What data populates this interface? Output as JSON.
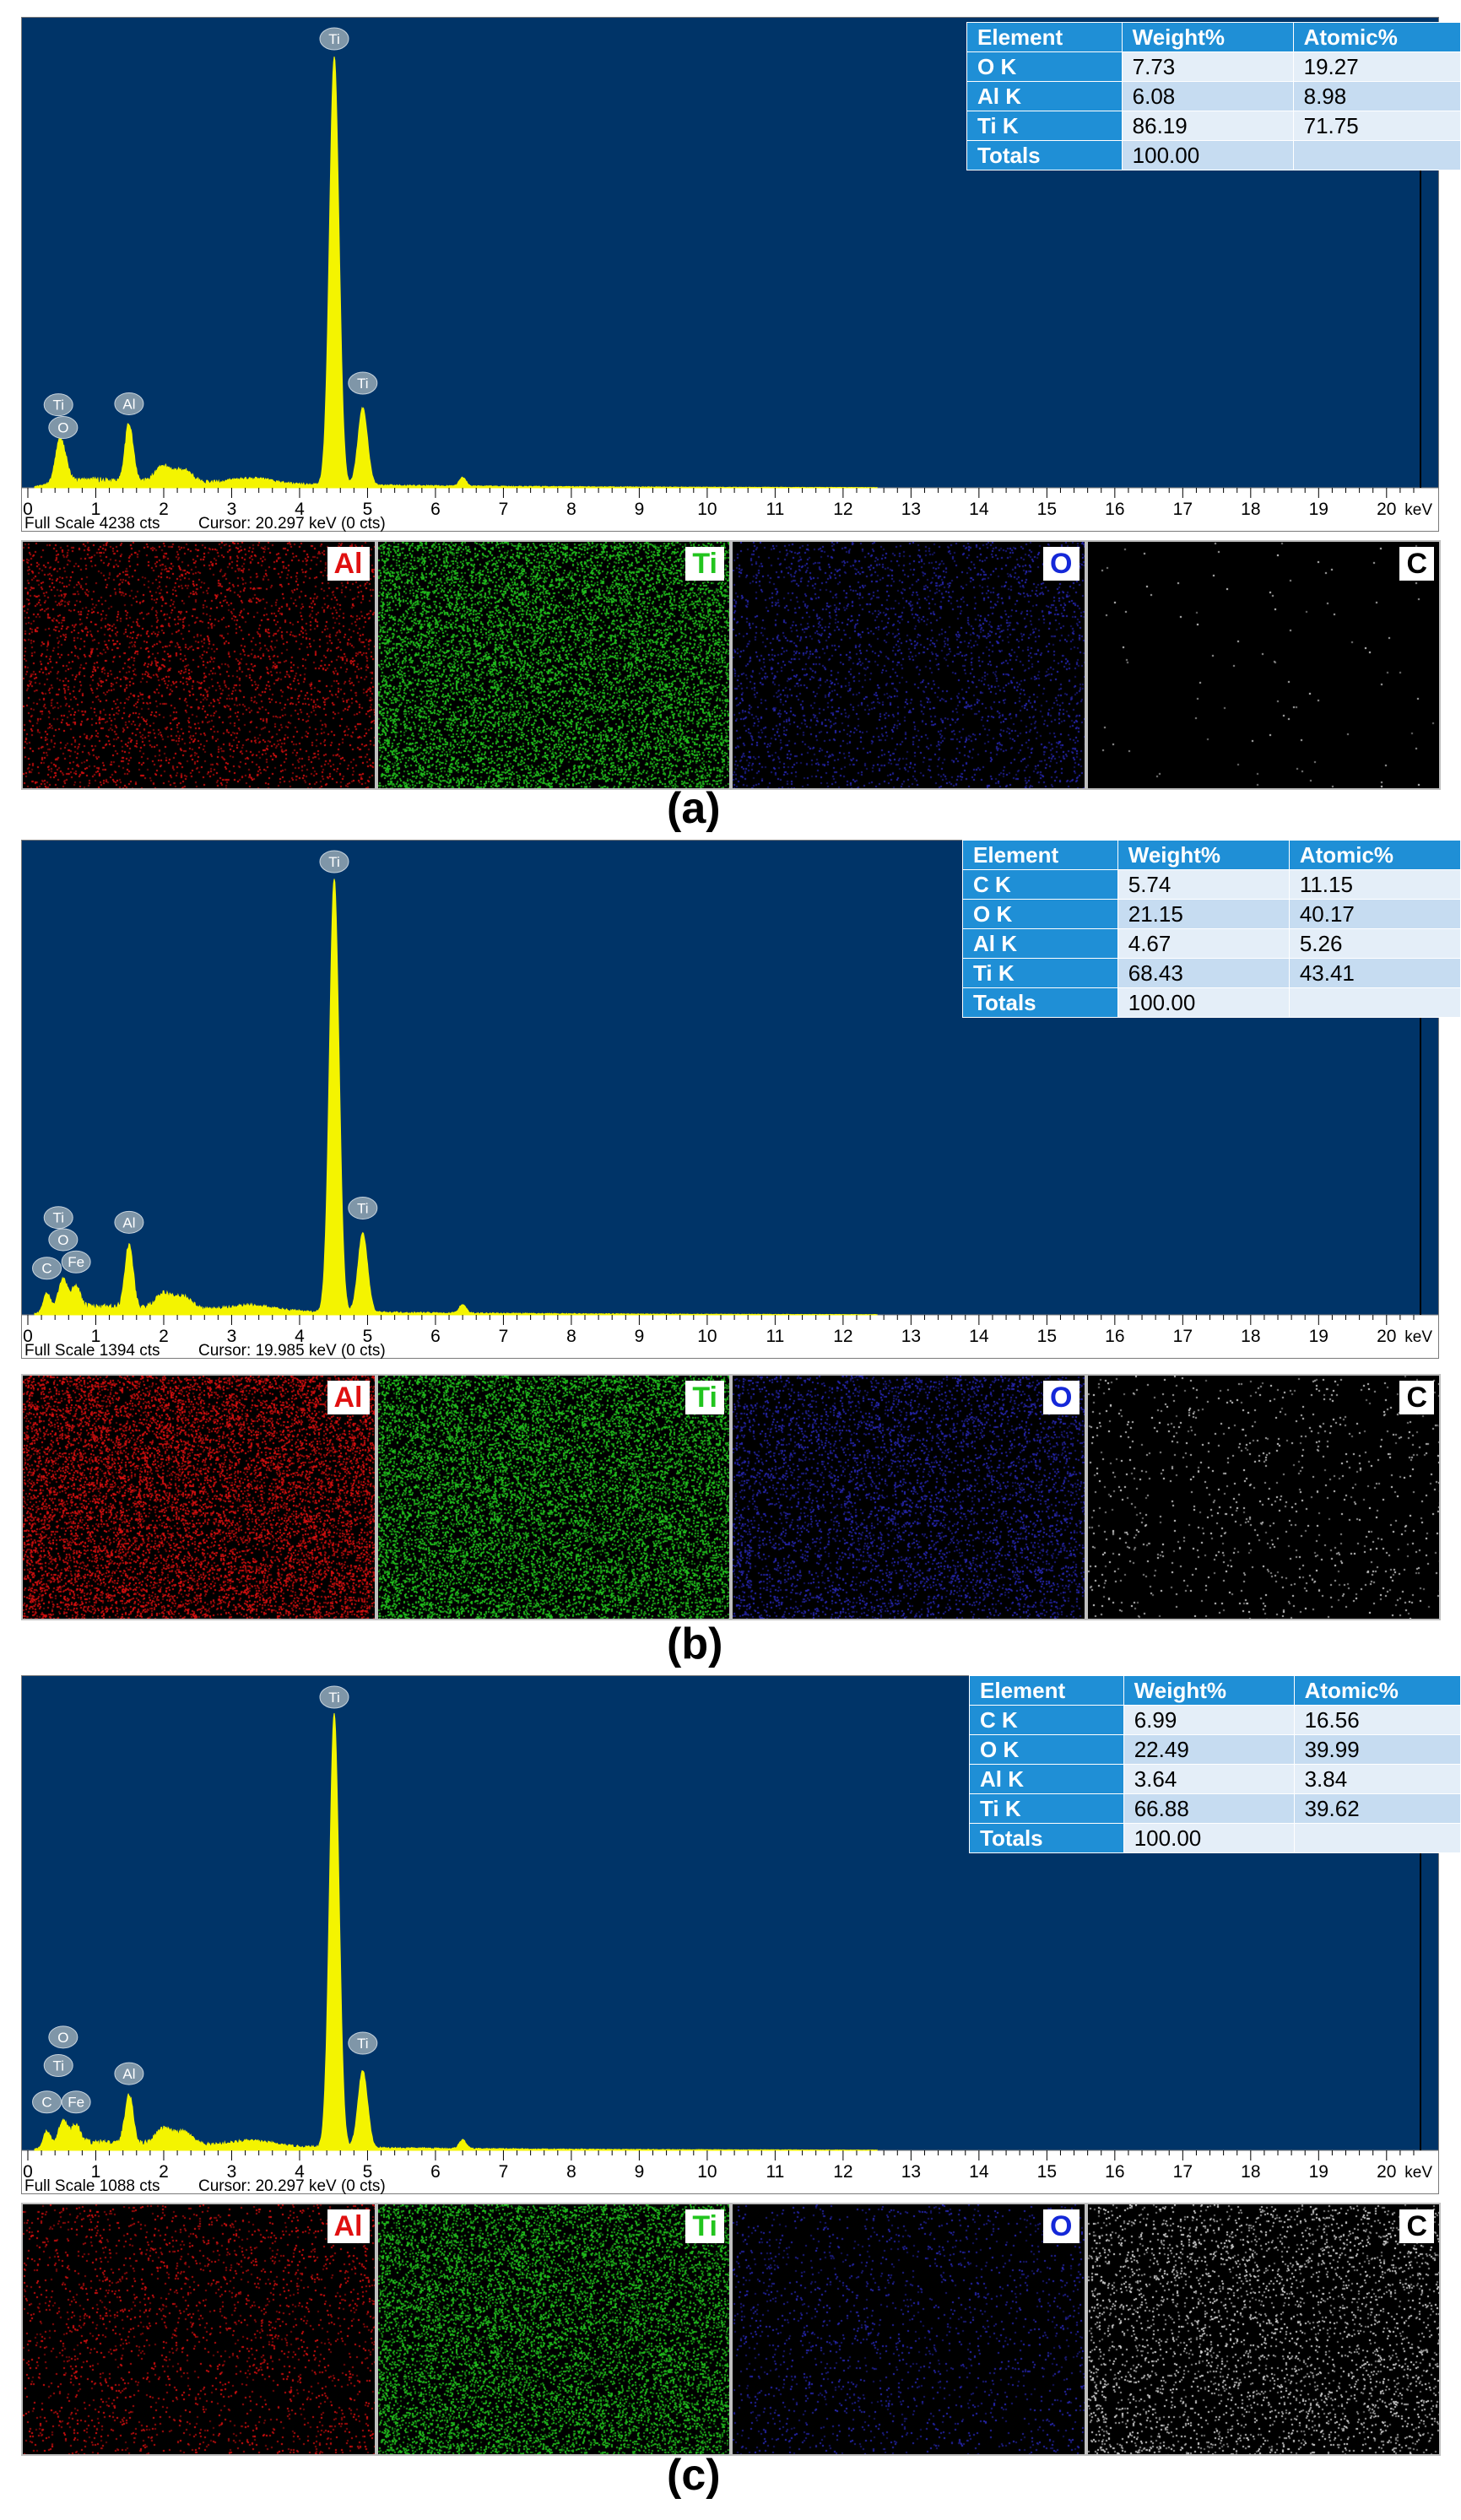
{
  "chart_data": [
    {
      "type": "line",
      "panel_label": "(a)",
      "xunit": "keV",
      "xlim": [
        0,
        20.4
      ],
      "xticks": [
        0,
        1,
        2,
        3,
        4,
        5,
        6,
        7,
        8,
        9,
        10,
        11,
        12,
        13,
        14,
        15,
        16,
        17,
        18,
        19,
        20
      ],
      "ymax": 4238,
      "status_scale": "Full Scale 4238 cts",
      "status_cursor": "Cursor: 20.297 keV (0 cts)",
      "peaks": [
        {
          "label": "Ti",
          "x": 4.51,
          "y": 4150,
          "width": 0.07
        },
        {
          "label": "Ti",
          "x": 4.93,
          "y": 750,
          "width": 0.07
        },
        {
          "label": "Al",
          "x": 1.49,
          "y": 560,
          "width": 0.06
        },
        {
          "label": "O",
          "x": 0.52,
          "y": 250,
          "width": 0.07
        },
        {
          "label": "Ti",
          "x": 0.45,
          "y": 250,
          "width": 0.06
        }
      ],
      "peak_labels": [
        {
          "label": "Ti",
          "x": 4.51,
          "y": 4238
        },
        {
          "label": "Ti",
          "x": 4.93,
          "y": 900
        },
        {
          "label": "Al",
          "x": 1.49,
          "y": 700
        },
        {
          "label": "O",
          "x": 0.52,
          "y": 470
        },
        {
          "label": "Ti",
          "x": 0.45,
          "y": 690
        }
      ],
      "table": {
        "headers": [
          "Element",
          "Weight%",
          "Atomic%"
        ],
        "rows": [
          {
            "element": "O K",
            "weight": "7.73",
            "atomic": "19.27"
          },
          {
            "element": "Al K",
            "weight": "6.08",
            "atomic": "8.98"
          },
          {
            "element": "Ti K",
            "weight": "86.19",
            "atomic": "71.75"
          },
          {
            "element": "Totals",
            "weight": "100.00",
            "atomic": ""
          }
        ]
      },
      "maps": [
        {
          "label": "Al",
          "color": "#e01010",
          "label_color": "#e01010",
          "density": 0.12
        },
        {
          "label": "Ti",
          "color": "#22c41e",
          "label_color": "#22c41e",
          "density": 0.55
        },
        {
          "label": "O",
          "color": "#2828b8",
          "label_color": "#1428d8",
          "density": 0.1
        },
        {
          "label": "C",
          "color": "#dcdcdc",
          "label_color": "#000000",
          "density": 0.003
        }
      ]
    },
    {
      "type": "line",
      "panel_label": "(b)",
      "xunit": "keV",
      "xlim": [
        0,
        20.4
      ],
      "xticks": [
        0,
        1,
        2,
        3,
        4,
        5,
        6,
        7,
        8,
        9,
        10,
        11,
        12,
        13,
        14,
        15,
        16,
        17,
        18,
        19,
        20
      ],
      "ymax": 1394,
      "status_scale": "Full Scale 1394 cts",
      "status_cursor": "Cursor: 19.985 keV (0 cts)",
      "peaks": [
        {
          "label": "Ti",
          "x": 4.51,
          "y": 1370,
          "width": 0.07
        },
        {
          "label": "Ti",
          "x": 4.93,
          "y": 250,
          "width": 0.07
        },
        {
          "label": "Al",
          "x": 1.49,
          "y": 200,
          "width": 0.06
        },
        {
          "label": "O",
          "x": 0.52,
          "y": 95,
          "width": 0.07
        },
        {
          "label": "Fe",
          "x": 0.71,
          "y": 70,
          "width": 0.06
        },
        {
          "label": "C",
          "x": 0.28,
          "y": 60,
          "width": 0.05
        }
      ],
      "peak_labels": [
        {
          "label": "Ti",
          "x": 4.51,
          "y": 1394
        },
        {
          "label": "Ti",
          "x": 4.93,
          "y": 300
        },
        {
          "label": "Al",
          "x": 1.49,
          "y": 255
        },
        {
          "label": "O",
          "x": 0.52,
          "y": 200
        },
        {
          "label": "Ti",
          "x": 0.45,
          "y": 270
        },
        {
          "label": "Fe",
          "x": 0.71,
          "y": 130
        },
        {
          "label": "C",
          "x": 0.28,
          "y": 110
        }
      ],
      "table": {
        "headers": [
          "Element",
          "Weight%",
          "Atomic%"
        ],
        "rows": [
          {
            "element": "C K",
            "weight": "5.74",
            "atomic": "11.15"
          },
          {
            "element": "O K",
            "weight": "21.15",
            "atomic": "40.17"
          },
          {
            "element": "Al K",
            "weight": "4.67",
            "atomic": "5.26"
          },
          {
            "element": "Ti K",
            "weight": "68.43",
            "atomic": "43.41"
          },
          {
            "element": "Totals",
            "weight": "100.00",
            "atomic": ""
          }
        ]
      },
      "maps": [
        {
          "label": "Al",
          "color": "#e01010",
          "label_color": "#e01010",
          "density": 0.35
        },
        {
          "label": "Ti",
          "color": "#22c41e",
          "label_color": "#22c41e",
          "density": 0.55
        },
        {
          "label": "O",
          "color": "#2828b8",
          "label_color": "#1428d8",
          "density": 0.18
        },
        {
          "label": "C",
          "color": "#dcdcdc",
          "label_color": "#000000",
          "density": 0.03
        }
      ]
    },
    {
      "type": "line",
      "panel_label": "(c)",
      "xunit": "keV",
      "xlim": [
        0,
        20.4
      ],
      "xticks": [
        0,
        1,
        2,
        3,
        4,
        5,
        6,
        7,
        8,
        9,
        10,
        11,
        12,
        13,
        14,
        15,
        16,
        17,
        18,
        19,
        20
      ],
      "ymax": 1088,
      "status_scale": "Full Scale 1088 cts",
      "status_cursor": "Cursor: 20.297 keV (0 cts)",
      "peaks": [
        {
          "label": "Ti",
          "x": 4.51,
          "y": 1070,
          "width": 0.07
        },
        {
          "label": "Ti",
          "x": 4.93,
          "y": 190,
          "width": 0.07
        },
        {
          "label": "Al",
          "x": 1.49,
          "y": 120,
          "width": 0.06
        },
        {
          "label": "O",
          "x": 0.52,
          "y": 60,
          "width": 0.07
        },
        {
          "label": "Fe",
          "x": 0.71,
          "y": 45,
          "width": 0.06
        },
        {
          "label": "C",
          "x": 0.28,
          "y": 40,
          "width": 0.05
        }
      ],
      "peak_labels": [
        {
          "label": "Ti",
          "x": 4.51,
          "y": 1088
        },
        {
          "label": "Ti",
          "x": 4.93,
          "y": 235
        },
        {
          "label": "Al",
          "x": 1.49,
          "y": 160
        },
        {
          "label": "O",
          "x": 0.52,
          "y": 250
        },
        {
          "label": "Ti",
          "x": 0.45,
          "y": 180
        },
        {
          "label": "Fe",
          "x": 0.71,
          "y": 90
        },
        {
          "label": "C",
          "x": 0.28,
          "y": 90
        }
      ],
      "table": {
        "headers": [
          "Element",
          "Weight%",
          "Atomic%"
        ],
        "rows": [
          {
            "element": "C K",
            "weight": "6.99",
            "atomic": "16.56"
          },
          {
            "element": "O K",
            "weight": "22.49",
            "atomic": "39.99"
          },
          {
            "element": "Al K",
            "weight": "3.64",
            "atomic": "3.84"
          },
          {
            "element": "Ti K",
            "weight": "66.88",
            "atomic": "39.62"
          },
          {
            "element": "Totals",
            "weight": "100.00",
            "atomic": ""
          }
        ]
      },
      "maps": [
        {
          "label": "Al",
          "color": "#e01010",
          "label_color": "#e01010",
          "density": 0.08
        },
        {
          "label": "Ti",
          "color": "#22c41e",
          "label_color": "#22c41e",
          "density": 0.45
        },
        {
          "label": "O",
          "color": "#2828b8",
          "label_color": "#1428d8",
          "density": 0.06
        },
        {
          "label": "C",
          "color": "#dcdcdc",
          "label_color": "#000000",
          "density": 0.12
        }
      ]
    }
  ],
  "colors": {
    "plot_background": "#003468",
    "spectrum_fill": "#f4f400",
    "marker_fill": "#7f96a8",
    "table_header": "#1f8fd6"
  }
}
